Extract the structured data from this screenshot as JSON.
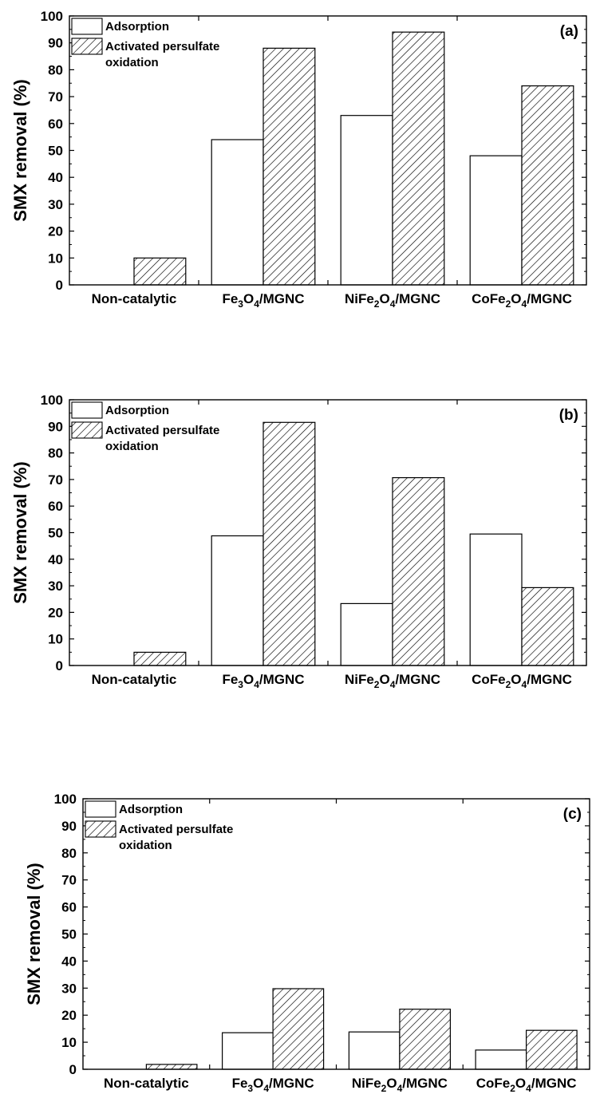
{
  "chart_data": [
    {
      "type": "bar",
      "panel_label": "(a)",
      "ylabel": "SMX removal (%)",
      "ylim": [
        0,
        100
      ],
      "yticks": [
        0,
        10,
        20,
        30,
        40,
        50,
        60,
        70,
        80,
        90,
        100
      ],
      "categories": [
        {
          "parts": [
            {
              "t": "Non-catalytic"
            }
          ]
        },
        {
          "parts": [
            {
              "t": "Fe"
            },
            {
              "t": "3",
              "sub": true
            },
            {
              "t": "O"
            },
            {
              "t": "4",
              "sub": true
            },
            {
              "t": "/MGNC"
            }
          ]
        },
        {
          "parts": [
            {
              "t": "NiFe"
            },
            {
              "t": "2",
              "sub": true
            },
            {
              "t": "O"
            },
            {
              "t": "4",
              "sub": true
            },
            {
              "t": "/MGNC"
            }
          ]
        },
        {
          "parts": [
            {
              "t": "CoFe"
            },
            {
              "t": "2",
              "sub": true
            },
            {
              "t": "O"
            },
            {
              "t": "4",
              "sub": true
            },
            {
              "t": "/MGNC"
            }
          ]
        }
      ],
      "series": [
        {
          "name": "Adsorption",
          "style": "open",
          "values": [
            0,
            54,
            63,
            48
          ]
        },
        {
          "name": "Activated persulfate oxidation",
          "name_lines": [
            "Activated persulfate",
            "oxidation"
          ],
          "style": "hatched",
          "values": [
            10,
            88,
            94,
            74
          ]
        }
      ],
      "legend": "top-left",
      "grid": false
    },
    {
      "type": "bar",
      "panel_label": "(b)",
      "ylabel": "SMX removal (%)",
      "ylim": [
        0,
        100
      ],
      "yticks": [
        0,
        10,
        20,
        30,
        40,
        50,
        60,
        70,
        80,
        90,
        100
      ],
      "categories": [
        {
          "parts": [
            {
              "t": "Non-catalytic"
            }
          ]
        },
        {
          "parts": [
            {
              "t": "Fe"
            },
            {
              "t": "3",
              "sub": true
            },
            {
              "t": "O"
            },
            {
              "t": "4",
              "sub": true
            },
            {
              "t": "/MGNC"
            }
          ]
        },
        {
          "parts": [
            {
              "t": "NiFe"
            },
            {
              "t": "2",
              "sub": true
            },
            {
              "t": "O"
            },
            {
              "t": "4",
              "sub": true
            },
            {
              "t": "/MGNC"
            }
          ]
        },
        {
          "parts": [
            {
              "t": "CoFe"
            },
            {
              "t": "2",
              "sub": true
            },
            {
              "t": "O"
            },
            {
              "t": "4",
              "sub": true
            },
            {
              "t": "/MGNC"
            }
          ]
        }
      ],
      "series": [
        {
          "name": "Adsorption",
          "style": "open",
          "values": [
            0,
            48.8,
            23.3,
            49.5
          ]
        },
        {
          "name": "Activated persulfate oxidation",
          "name_lines": [
            "Activated persulfate",
            "oxidation"
          ],
          "style": "hatched",
          "values": [
            5,
            91.5,
            70.7,
            29.3
          ]
        }
      ],
      "legend": "top-left",
      "grid": false
    },
    {
      "type": "bar",
      "panel_label": "(c)",
      "ylabel": "SMX removal (%)",
      "ylim": [
        0,
        100
      ],
      "yticks": [
        0,
        10,
        20,
        30,
        40,
        50,
        60,
        70,
        80,
        90,
        100
      ],
      "categories": [
        {
          "parts": [
            {
              "t": "Non-catalytic"
            }
          ]
        },
        {
          "parts": [
            {
              "t": "Fe"
            },
            {
              "t": "3",
              "sub": true
            },
            {
              "t": "O"
            },
            {
              "t": "4",
              "sub": true
            },
            {
              "t": "/MGNC"
            }
          ]
        },
        {
          "parts": [
            {
              "t": "NiFe"
            },
            {
              "t": "2",
              "sub": true
            },
            {
              "t": "O"
            },
            {
              "t": "4",
              "sub": true
            },
            {
              "t": "/MGNC"
            }
          ]
        },
        {
          "parts": [
            {
              "t": "CoFe"
            },
            {
              "t": "2",
              "sub": true
            },
            {
              "t": "O"
            },
            {
              "t": "4",
              "sub": true
            },
            {
              "t": "/MGNC"
            }
          ]
        }
      ],
      "series": [
        {
          "name": "Adsorption",
          "style": "open",
          "values": [
            0,
            13.5,
            13.8,
            7.1
          ]
        },
        {
          "name": "Activated persulfate oxidation",
          "name_lines": [
            "Activated persulfate",
            "oxidation"
          ],
          "style": "hatched",
          "values": [
            1.8,
            29.8,
            22.2,
            14.4
          ]
        }
      ],
      "legend": "top-left",
      "grid": false
    }
  ],
  "colors": {
    "axis": "#000000",
    "bar_fill": "#ffffff",
    "hatch": "#000000"
  }
}
